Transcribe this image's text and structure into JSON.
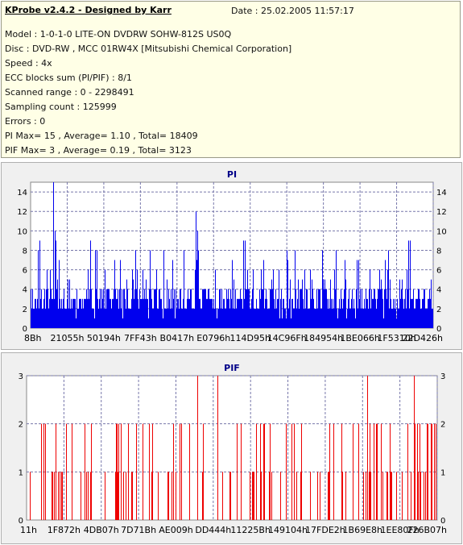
{
  "header": {
    "title": "KProbe v2.4.2 - Designed by Karr",
    "date": "Date : 25.02.2005 11:57:17",
    "lines": [
      "Model : 1-0-1-0 LITE-ON DVDRW SOHW-812S  US0Q",
      "Disc : DVD-RW , MCC 01RW4X   [Mitsubishi Chemical Corporation]",
      "Speed : 4x",
      "ECC blocks sum (PI/PIF) : 8/1",
      "Scanned range : 0 - 2298491",
      "Sampling count : 125999",
      "Errors : 0",
      "PI Max= 15 , Average= 1.10 , Total= 18409",
      "PIF Max= 3 , Average= 0.19 , Total= 3123"
    ]
  },
  "colors": {
    "pi_bar": "#0000ee",
    "pif_bar": "#ee0000",
    "plot_bg": "#ffffff",
    "gridline": "#7777aa",
    "info_bg": "#ffffe6"
  },
  "chart_data": [
    {
      "type": "bar",
      "title": "PI",
      "ylim": [
        0,
        15
      ],
      "yticks": [
        0,
        2,
        4,
        6,
        8,
        10,
        12,
        14
      ],
      "xtick_labels": [
        "8Bh",
        "21055h",
        "50194h",
        "7FF43h",
        "B0417h",
        "E0796h",
        "114D95h",
        "14C96Fh",
        "184954h",
        "1BE066h",
        "1F5310h",
        "22D426h"
      ],
      "grid": true,
      "notable_values": {
        "max": 15,
        "average": 1.1,
        "total": 18409
      }
    },
    {
      "type": "bar",
      "title": "PIF",
      "ylim": [
        0,
        3
      ],
      "yticks": [
        0,
        1,
        2,
        3
      ],
      "xtick_labels": [
        "11h",
        "1F872h",
        "4DB07h",
        "7D71Bh",
        "AE009h",
        "DD444h",
        "11225Bh",
        "149104h",
        "17FDE2h",
        "1B69E8h",
        "1EE80Fh",
        "226B07h"
      ],
      "grid": true,
      "notable_values": {
        "max": 3,
        "average": 0.19,
        "total": 3123
      }
    }
  ]
}
